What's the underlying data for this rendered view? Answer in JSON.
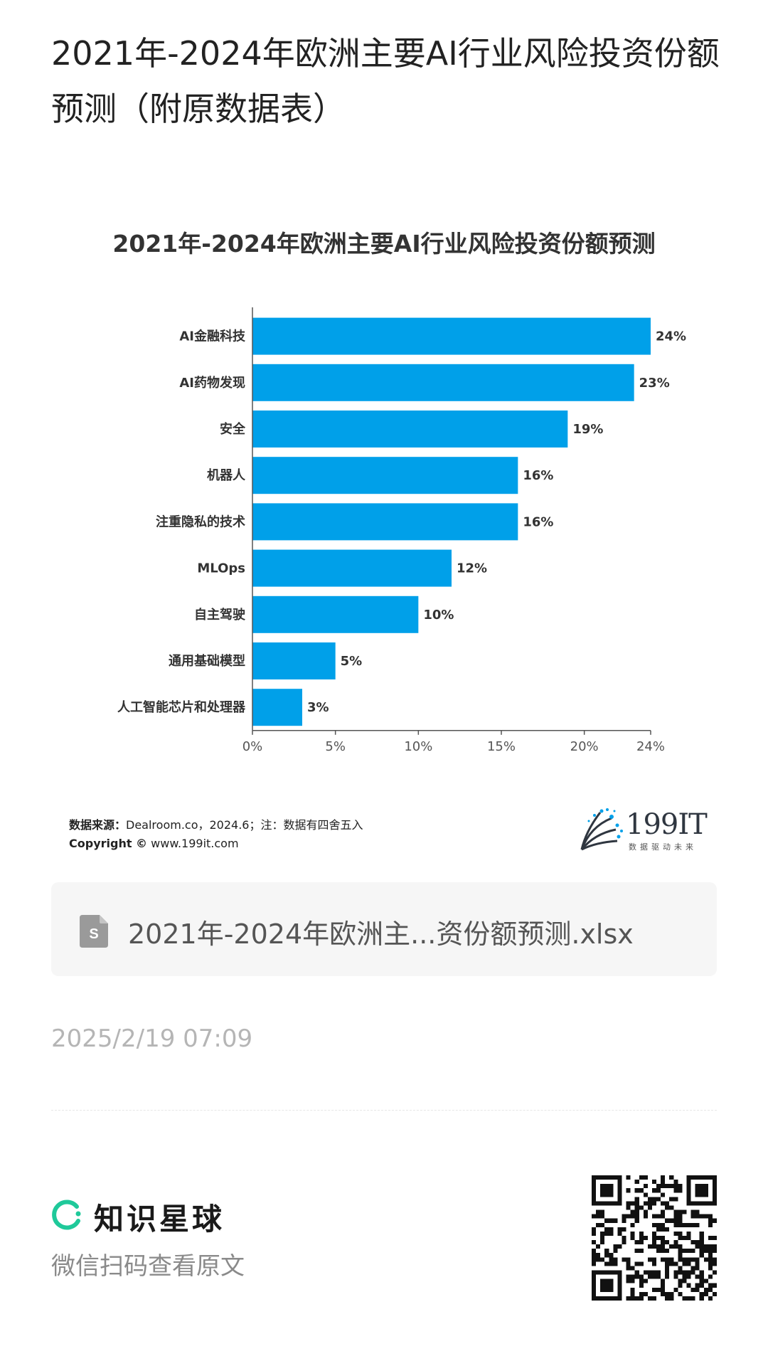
{
  "page": {
    "title": "2021年-2024年欧洲主要AI行业风险投资份额预测（附原数据表）"
  },
  "chart_data": {
    "type": "bar",
    "orientation": "horizontal",
    "title": "2021年-2024年欧洲主要AI行业风险投资份额预测",
    "categories": [
      "AI金融科技",
      "AI药物发现",
      "安全",
      "机器人",
      "注重隐私的技术",
      "MLOps",
      "自主驾驶",
      "通用基础模型",
      "人工智能芯片和处理器"
    ],
    "values": [
      24,
      23,
      19,
      16,
      16,
      12,
      10,
      5,
      3
    ],
    "value_labels": [
      "24%",
      "23%",
      "19%",
      "16%",
      "16%",
      "12%",
      "10%",
      "5%",
      "3%"
    ],
    "xlim": [
      0,
      24
    ],
    "x_ticks": [
      0,
      5,
      10,
      15,
      20,
      24
    ],
    "x_tick_labels": [
      "0%",
      "5%",
      "10%",
      "15%",
      "20%",
      "24%"
    ],
    "xlabel": "",
    "ylabel": "",
    "grid": false,
    "bar_color": "#00a0e9"
  },
  "source": {
    "label": "数据来源：",
    "text": "Dealroom.co，2024.6；注：数据有四舍五入",
    "copyright_label": "Copyright ©",
    "copyright_text": "www.199it.com"
  },
  "brand": {
    "logo_text": "199IT",
    "tagline": "数据驱动未来"
  },
  "file": {
    "icon": "spreadsheet-file-icon",
    "name": "2021年-2024年欧洲主...资份额预测.xlsx"
  },
  "post": {
    "timestamp": "2025/2/19 07:09"
  },
  "footer": {
    "app_name": "知识星球",
    "caption": "微信扫码查看原文",
    "qr_icon": "qr-code-icon"
  }
}
